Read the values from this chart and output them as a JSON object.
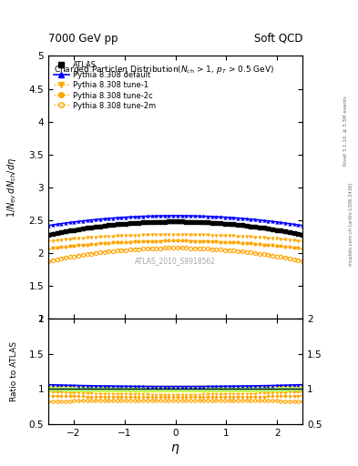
{
  "title_left": "7000 GeV pp",
  "title_right": "Soft QCD",
  "plot_title": "Charged Particle$\\eta$ Distribution($N_{\\rm ch}$ > 1, $p_T$ > 0.5 GeV)",
  "ylabel_main": "$1/N_{\\rm ev}\\,dN_{\\rm ch}/d\\eta$",
  "ylabel_ratio": "Ratio to ATLAS",
  "xlabel": "$\\eta$",
  "watermark": "ATLAS_2010_S8918562",
  "right_label_top": "Rivet 3.1.10, ≥ 3.3M events",
  "right_label_bottom": "mcplots.cern.ch [arXiv:1306.3436]",
  "eta_min": -2.5,
  "eta_max": 2.5,
  "ylim_main": [
    1.0,
    5.0
  ],
  "ylim_ratio": [
    0.5,
    2.0
  ],
  "atlas_color": "#000000",
  "default_color": "#0000FF",
  "tune_color": "#FFA500",
  "background_color": "#ffffff",
  "ratio_band_color_green": "#90EE90",
  "ratio_band_color_yellow": "#FFFF00",
  "n_points": 60,
  "atlas_peak": 2.48,
  "atlas_edge": 2.28,
  "default_peak": 2.57,
  "default_edge": 2.42,
  "tune1_peak": 2.28,
  "tune1_edge": 2.18,
  "tune2c_peak": 2.19,
  "tune2c_edge": 2.07,
  "tune2m_peak": 2.08,
  "tune2m_edge": 1.88
}
